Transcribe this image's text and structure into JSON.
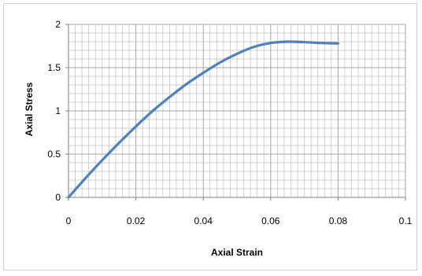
{
  "chart_data": {
    "type": "line",
    "title": "",
    "xlabel": "Axial Strain",
    "ylabel": "Axial Stress",
    "xlim": [
      0,
      0.1
    ],
    "ylim": [
      0,
      2
    ],
    "x_ticks": [
      "0",
      "0.02",
      "0.04",
      "0.06",
      "0.08",
      "0.1"
    ],
    "y_ticks": [
      "0",
      "0.5",
      "1",
      "1.5",
      "2"
    ],
    "grid": true,
    "legend": "none",
    "line_color": "#4f81bd",
    "grid_color": "#bfbfbf",
    "series": [
      {
        "x": [
          0,
          0.005,
          0.01,
          0.015,
          0.02,
          0.025,
          0.03,
          0.035,
          0.04,
          0.045,
          0.05,
          0.055,
          0.06,
          0.065,
          0.07,
          0.075,
          0.08
        ],
        "y": [
          0,
          0.22,
          0.43,
          0.63,
          0.82,
          1.0,
          1.16,
          1.31,
          1.44,
          1.56,
          1.66,
          1.74,
          1.785,
          1.8,
          1.795,
          1.785,
          1.78
        ]
      }
    ]
  }
}
